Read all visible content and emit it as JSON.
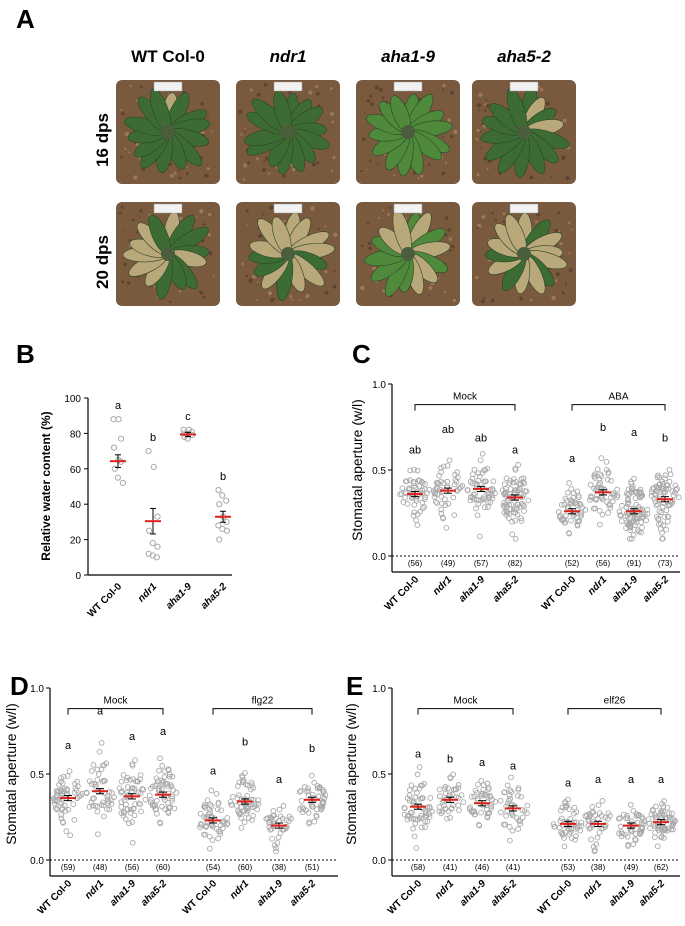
{
  "panel_a": {
    "letter": "A",
    "genotypes": [
      "WT Col-0",
      "ndr1",
      "aha1-9",
      "aha5-2"
    ],
    "italic": [
      false,
      true,
      true,
      true
    ],
    "rows": [
      "16 dps",
      "20 dps"
    ],
    "colors": {
      "soil": "#7a5a3f",
      "leaf_healthy": "#3d6b34",
      "leaf_dry": "#b8a87a",
      "leaf_rosette": "#4a5d3c"
    }
  },
  "chart_data": [
    {
      "panel": "B",
      "type": "scatter",
      "ylabel": "Relative water content (%)",
      "ylim": [
        0,
        100
      ],
      "yticks": [
        "0",
        "20",
        "40",
        "60",
        "80",
        "100"
      ],
      "categories": [
        "WT Col-0",
        "ndr1",
        "aha1-9",
        "aha5-2"
      ],
      "letters": [
        "a",
        "b",
        "c",
        "b"
      ],
      "means": [
        64.3,
        30.4,
        79.4,
        32.9
      ],
      "sem": [
        3.6,
        7.2,
        1.2,
        3.1
      ],
      "points": [
        [
          88,
          88,
          77,
          72,
          65,
          64,
          60,
          55,
          52
        ],
        [
          70,
          61,
          33,
          25,
          18,
          16,
          12,
          11,
          10
        ],
        [
          82,
          82,
          81,
          80,
          80,
          79,
          78,
          77
        ],
        [
          48,
          45,
          42,
          40,
          33,
          30,
          28,
          26,
          25,
          20
        ]
      ]
    },
    {
      "panel": "C",
      "type": "scatter",
      "ylabel": "Stomatal aperture (w/l)",
      "ylim": [
        0,
        1.0
      ],
      "yticks": [
        "0.0",
        "0.5",
        "1.0"
      ],
      "groups": [
        "Mock",
        "ABA"
      ],
      "categories": [
        "WT Col-0",
        "ndr1",
        "aha1-9",
        "aha5-2",
        "WT Col-0",
        "ndr1",
        "aha1-9",
        "aha5-2"
      ],
      "letters": [
        "ab",
        "ab",
        "ab",
        "a",
        "a",
        "b",
        "a",
        "b"
      ],
      "n": [
        "(56)",
        "(49)",
        "(57)",
        "(82)",
        "(52)",
        "(56)",
        "(91)",
        "(73)"
      ],
      "means": [
        0.36,
        0.38,
        0.39,
        0.34,
        0.26,
        0.37,
        0.26,
        0.33
      ],
      "spread": [
        0.07,
        0.09,
        0.08,
        0.09,
        0.07,
        0.08,
        0.08,
        0.09
      ],
      "range": [
        [
          0.18,
          0.55
        ],
        [
          0.15,
          0.67
        ],
        [
          0.1,
          0.62
        ],
        [
          0.1,
          0.55
        ],
        [
          0.1,
          0.5
        ],
        [
          0.18,
          0.68
        ],
        [
          0.1,
          0.65
        ],
        [
          0.1,
          0.62
        ]
      ]
    },
    {
      "panel": "D",
      "type": "scatter",
      "ylabel": "Stomatal aperture (w/l)",
      "ylim": [
        0,
        1.0
      ],
      "yticks": [
        "0.0",
        "0.5",
        "1.0"
      ],
      "groups": [
        "Mock",
        "flg22"
      ],
      "categories": [
        "WT Col-0",
        "ndr1",
        "aha1-9",
        "aha5-2",
        "WT Col-0",
        "ndr1",
        "aha1-9",
        "aha5-2"
      ],
      "letters": [
        "a",
        "a",
        "a",
        "a",
        "a",
        "b",
        "a",
        "b"
      ],
      "n": [
        "(59)",
        "(48)",
        "(56)",
        "(60)",
        "(54)",
        "(60)",
        "(38)",
        "(51)"
      ],
      "means": [
        0.36,
        0.4,
        0.37,
        0.38,
        0.23,
        0.34,
        0.2,
        0.35
      ],
      "spread": [
        0.08,
        0.11,
        0.1,
        0.09,
        0.07,
        0.07,
        0.06,
        0.07
      ],
      "range": [
        [
          0.12,
          0.6
        ],
        [
          0.15,
          0.8
        ],
        [
          0.1,
          0.65
        ],
        [
          0.15,
          0.68
        ],
        [
          0.05,
          0.45
        ],
        [
          0.12,
          0.62
        ],
        [
          0.05,
          0.4
        ],
        [
          0.12,
          0.58
        ]
      ]
    },
    {
      "panel": "E",
      "type": "scatter",
      "ylabel": "Stomatal aperture (w/l)",
      "ylim": [
        0,
        1.0
      ],
      "yticks": [
        "0.0",
        "0.5",
        "1.0"
      ],
      "groups": [
        "Mock",
        "elf26"
      ],
      "categories": [
        "WT Col-0",
        "ndr1",
        "aha1-9",
        "aha5-2",
        "WT Col-0",
        "ndr1",
        "aha1-9",
        "aha5-2"
      ],
      "letters": [
        "a",
        "b",
        "a",
        "a",
        "a",
        "a",
        "a",
        "a"
      ],
      "n": [
        "(58)",
        "(41)",
        "(46)",
        "(41)",
        "(53)",
        "(38)",
        "(49)",
        "(62)"
      ],
      "means": [
        0.31,
        0.35,
        0.33,
        0.3,
        0.21,
        0.21,
        0.2,
        0.22
      ],
      "spread": [
        0.09,
        0.07,
        0.07,
        0.08,
        0.06,
        0.07,
        0.06,
        0.06
      ],
      "range": [
        [
          0.07,
          0.55
        ],
        [
          0.18,
          0.52
        ],
        [
          0.12,
          0.5
        ],
        [
          0.08,
          0.48
        ],
        [
          0.05,
          0.38
        ],
        [
          0.05,
          0.4
        ],
        [
          0.05,
          0.4
        ],
        [
          0.08,
          0.4
        ]
      ]
    }
  ],
  "colors": {
    "point": "#a8a8a8",
    "mean": "#e0201b",
    "axis": "#000000"
  }
}
